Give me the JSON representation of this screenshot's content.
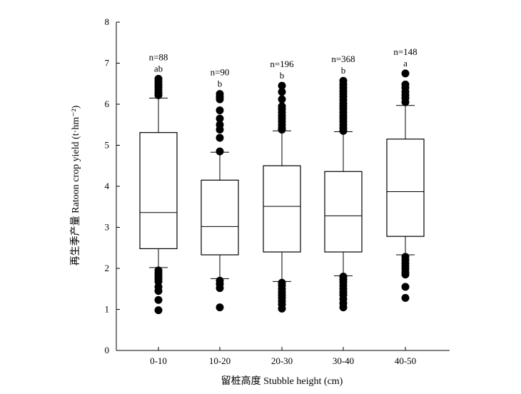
{
  "chart_data": {
    "type": "box",
    "xlabel": "留桩高度 Stubble height (cm)",
    "ylabel": "再生季产量 Ratoon crop yield (t·hm⁻²)",
    "ylim": [
      0,
      8
    ],
    "yticks": [
      0,
      1,
      2,
      3,
      4,
      5,
      6,
      7,
      8
    ],
    "categories": [
      "0-10",
      "10-20",
      "20-30",
      "30-40",
      "40-50"
    ],
    "boxes": [
      {
        "category": "0-10",
        "n_label": "n=88",
        "letter": "ab",
        "whisker_low": 2.02,
        "q1": 2.48,
        "median": 3.36,
        "q3": 5.31,
        "whisker_high": 6.15,
        "outliers": [
          6.62,
          6.55,
          6.48,
          6.42,
          6.35,
          6.28,
          6.22,
          1.95,
          1.88,
          1.82,
          1.75,
          1.68,
          1.55,
          1.45,
          1.23,
          0.98
        ]
      },
      {
        "category": "10-20",
        "n_label": "n=90",
        "letter": "b",
        "whisker_low": 1.75,
        "q1": 2.33,
        "median": 3.02,
        "q3": 4.15,
        "whisker_high": 4.83,
        "outliers": [
          6.25,
          6.18,
          6.12,
          5.85,
          5.65,
          5.5,
          5.38,
          5.18,
          4.85,
          1.7,
          1.62,
          1.52,
          1.05
        ]
      },
      {
        "category": "20-30",
        "n_label": "n=196",
        "letter": "b",
        "whisker_low": 1.68,
        "q1": 2.4,
        "median": 3.51,
        "q3": 4.5,
        "whisker_high": 5.35,
        "outliers": [
          6.45,
          6.3,
          6.12,
          5.95,
          5.88,
          5.8,
          5.72,
          5.65,
          5.58,
          5.5,
          5.42,
          5.38,
          1.65,
          1.58,
          1.5,
          1.42,
          1.35,
          1.28,
          1.2,
          1.12,
          1.02
        ]
      },
      {
        "category": "30-40",
        "n_label": "n=368",
        "letter": "b",
        "whisker_low": 1.82,
        "q1": 2.4,
        "median": 3.28,
        "q3": 4.36,
        "whisker_high": 5.33,
        "outliers": [
          6.57,
          6.48,
          6.4,
          6.32,
          6.25,
          6.18,
          6.1,
          6.02,
          5.95,
          5.88,
          5.8,
          5.72,
          5.65,
          5.58,
          5.5,
          5.42,
          5.35,
          1.8,
          1.73,
          1.66,
          1.58,
          1.5,
          1.42,
          1.35,
          1.25,
          1.15,
          1.05
        ]
      },
      {
        "category": "40-50",
        "n_label": "n=148",
        "letter": "a",
        "whisker_low": 2.33,
        "q1": 2.78,
        "median": 3.87,
        "q3": 5.15,
        "whisker_high": 5.97,
        "outliers": [
          6.75,
          6.48,
          6.4,
          6.3,
          6.22,
          6.15,
          6.05,
          2.28,
          2.2,
          2.12,
          2.05,
          1.98,
          1.9,
          1.85,
          1.55,
          1.28
        ]
      }
    ]
  }
}
